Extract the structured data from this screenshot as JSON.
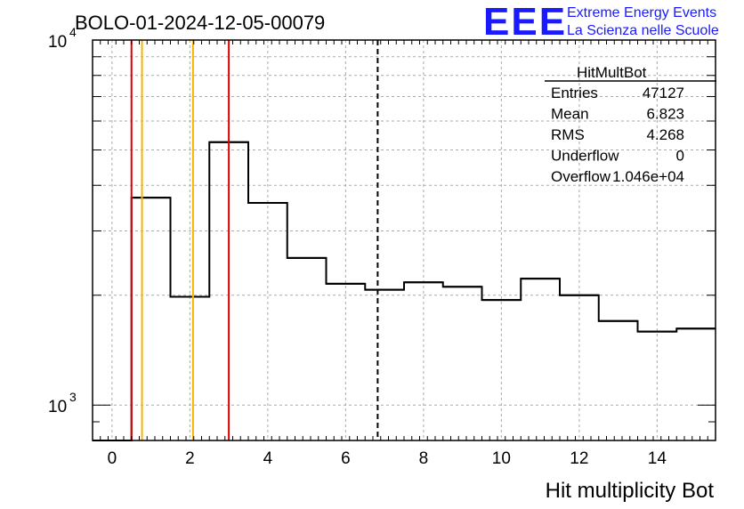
{
  "title": "BOLO-01-2024-12-05-00079",
  "logo": {
    "mark": "EEE",
    "line1": "Extreme Energy Events",
    "line2": "La Scienza nelle Scuole",
    "color": "#1a1aff"
  },
  "stats": {
    "name": "HitMultBot",
    "rows": [
      {
        "label": "Entries",
        "value": "47127"
      },
      {
        "label": "Mean",
        "value": "6.823"
      },
      {
        "label": "RMS",
        "value": "4.268"
      },
      {
        "label": "Underflow",
        "value": "0"
      },
      {
        "label": "Overflow",
        "value": "1.046e+04"
      }
    ]
  },
  "chart_data": {
    "type": "histogram",
    "xlabel": "Hit multiplicity Bot",
    "ylabel": "",
    "xlim": [
      -0.5,
      15.5
    ],
    "ylim": [
      800,
      10000
    ],
    "yscale": "log",
    "grid": true,
    "xticks": [
      "0",
      "2",
      "4",
      "6",
      "8",
      "10",
      "12",
      "14"
    ],
    "ytick_labels": [
      {
        "base": "10",
        "exp": "3",
        "value": 1000
      },
      {
        "base": "10",
        "exp": "4",
        "value": 10000
      }
    ],
    "bins": [
      {
        "x0": -0.5,
        "x1": 0.5,
        "value": 0
      },
      {
        "x0": 0.5,
        "x1": 1.5,
        "value": 3700
      },
      {
        "x0": 1.5,
        "x1": 2.5,
        "value": 1980
      },
      {
        "x0": 2.5,
        "x1": 3.5,
        "value": 5250
      },
      {
        "x0": 3.5,
        "x1": 4.5,
        "value": 3580
      },
      {
        "x0": 4.5,
        "x1": 5.5,
        "value": 2530
      },
      {
        "x0": 5.5,
        "x1": 6.5,
        "value": 2150
      },
      {
        "x0": 6.5,
        "x1": 7.5,
        "value": 2070
      },
      {
        "x0": 7.5,
        "x1": 8.5,
        "value": 2170
      },
      {
        "x0": 8.5,
        "x1": 9.5,
        "value": 2110
      },
      {
        "x0": 9.5,
        "x1": 10.5,
        "value": 1940
      },
      {
        "x0": 10.5,
        "x1": 11.5,
        "value": 2220
      },
      {
        "x0": 11.5,
        "x1": 12.5,
        "value": 2000
      },
      {
        "x0": 12.5,
        "x1": 13.5,
        "value": 1700
      },
      {
        "x0": 13.5,
        "x1": 14.5,
        "value": 1590
      },
      {
        "x0": 14.5,
        "x1": 15.5,
        "value": 1620
      }
    ],
    "vlines": [
      {
        "x": 0.5,
        "color": "#e00000",
        "style": "solid"
      },
      {
        "x": 0.77,
        "color": "#f5b400",
        "style": "solid"
      },
      {
        "x": 2.08,
        "color": "#f5b400",
        "style": "solid"
      },
      {
        "x": 3.0,
        "color": "#e00000",
        "style": "solid"
      },
      {
        "x": 6.823,
        "color": "#000000",
        "style": "dashed"
      }
    ],
    "line_color": "#000000"
  }
}
